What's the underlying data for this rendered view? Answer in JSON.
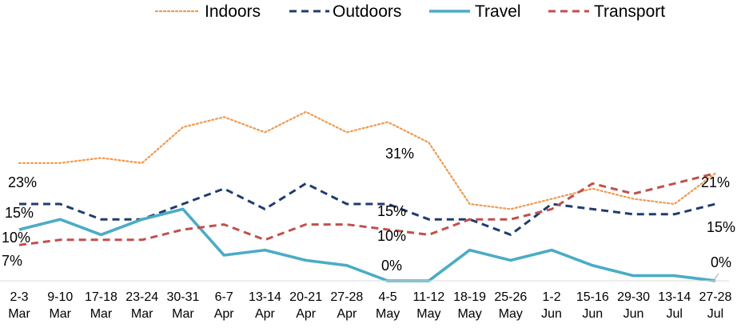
{
  "chart_data": {
    "type": "line",
    "title": "",
    "xlabel": "",
    "ylabel": "",
    "categories": [
      [
        "2-3",
        "Mar"
      ],
      [
        "9-10",
        "Mar"
      ],
      [
        "17-18",
        "Mar"
      ],
      [
        "23-24",
        "Mar"
      ],
      [
        "30-31",
        "Mar"
      ],
      [
        "6-7",
        "Apr"
      ],
      [
        "13-14",
        "Apr"
      ],
      [
        "20-21",
        "Apr"
      ],
      [
        "27-28",
        "Apr"
      ],
      [
        "4-5",
        "May"
      ],
      [
        "11-12",
        "May"
      ],
      [
        "18-19",
        "May"
      ],
      [
        "25-26",
        "May"
      ],
      [
        "1-2",
        "Jun"
      ],
      [
        "15-16",
        "Jun"
      ],
      [
        "29-30",
        "Jun"
      ],
      [
        "13-14",
        "Jul"
      ],
      [
        "27-28",
        "Jul"
      ]
    ],
    "ylim": [
      0,
      35
    ],
    "grid": false,
    "legend_position": "top",
    "series": [
      {
        "name": "Indoors",
        "color": "#F0994F",
        "dash": "dotted",
        "values": [
          23,
          23,
          24,
          23,
          30,
          32,
          29,
          33,
          29,
          31,
          27,
          15,
          14,
          16,
          18,
          16,
          15,
          21
        ]
      },
      {
        "name": "Outdoors",
        "color": "#1F3D6E",
        "dash": "dashed",
        "values": [
          15,
          15,
          12,
          12,
          15,
          18,
          14,
          19,
          15,
          15,
          12,
          12,
          9,
          15,
          14,
          13,
          13,
          15
        ]
      },
      {
        "name": "Travel",
        "color": "#4BACC6",
        "dash": "solid",
        "values": [
          10,
          12,
          9,
          12,
          14,
          5,
          6,
          4,
          3,
          0,
          0,
          6,
          4,
          6,
          3,
          1,
          1,
          0
        ]
      },
      {
        "name": "Transport",
        "color": "#C0504D",
        "dash": "dashed",
        "values": [
          7,
          8,
          8,
          8,
          10,
          11,
          8,
          11,
          11,
          10,
          9,
          12,
          12,
          14,
          19,
          17,
          19,
          21
        ]
      }
    ],
    "data_labels": [
      {
        "text": "23%",
        "series": 0,
        "index": 0
      },
      {
        "text": "15%",
        "series": 1,
        "index": 0
      },
      {
        "text": "10%",
        "series": 2,
        "index": 0
      },
      {
        "text": "7%",
        "series": 3,
        "index": 0
      },
      {
        "text": "31%",
        "series": 0,
        "index": 9
      },
      {
        "text": "15%",
        "series": 1,
        "index": 9
      },
      {
        "text": "10%",
        "series": 3,
        "index": 9
      },
      {
        "text": "0%",
        "series": 2,
        "index": 9
      },
      {
        "text": "21%",
        "series": 0,
        "index": 17
      },
      {
        "text": "15%",
        "series": 1,
        "index": 17
      },
      {
        "text": "0%",
        "series": 2,
        "index": 17
      }
    ]
  }
}
